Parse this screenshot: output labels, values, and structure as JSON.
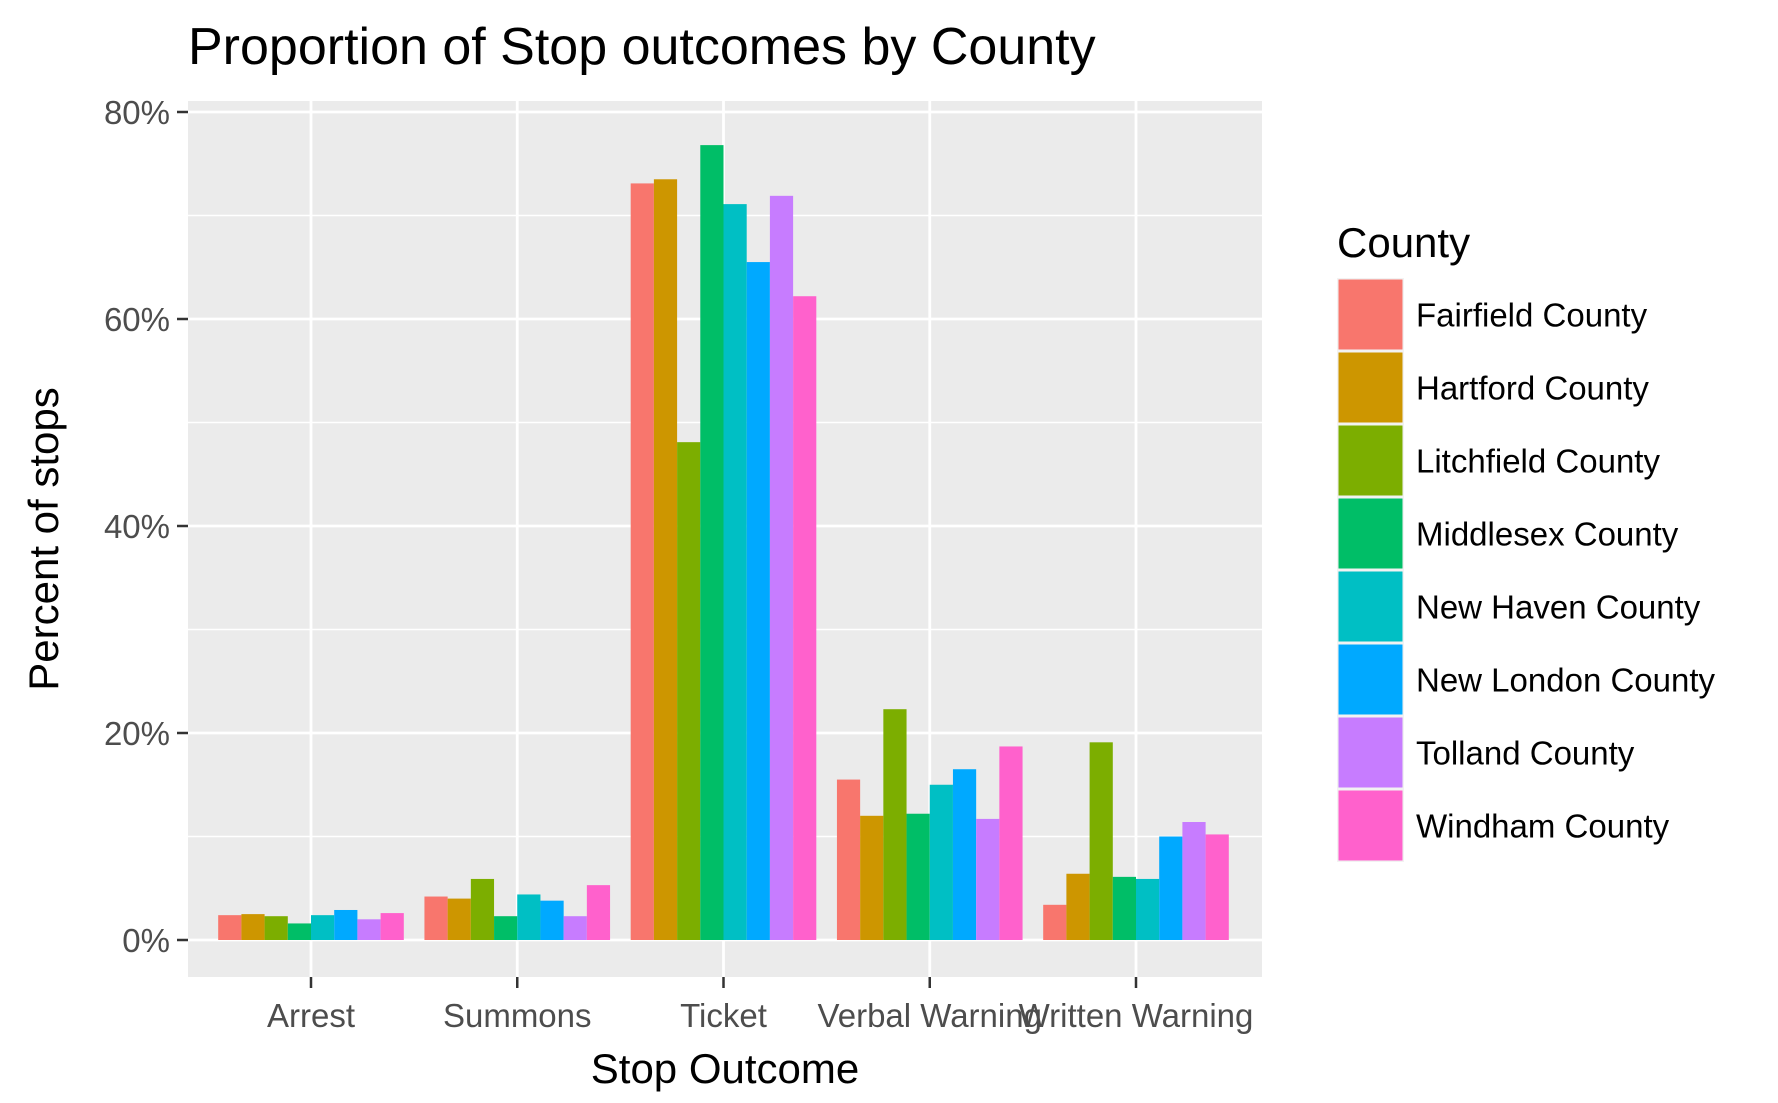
{
  "chart_data": {
    "type": "bar",
    "title": "Proportion of Stop outcomes by County",
    "xlabel": "Stop Outcome",
    "ylabel": "Percent of stops",
    "ylim": [
      0,
      0.8
    ],
    "y_ticks": [
      0,
      0.2,
      0.4,
      0.6,
      0.8
    ],
    "y_tick_labels": [
      "0%",
      "20%",
      "40%",
      "60%",
      "80%"
    ],
    "categories": [
      "Arrest",
      "Summons",
      "Ticket",
      "Verbal Warning",
      "Written Warning"
    ],
    "grid": true,
    "legend": {
      "title": "County",
      "position": "right"
    },
    "series": [
      {
        "name": "Fairfield County",
        "color": "#F8766D",
        "values": [
          0.024,
          0.042,
          0.731,
          0.155,
          0.034
        ]
      },
      {
        "name": "Hartford County",
        "color": "#CD9600",
        "values": [
          0.025,
          0.04,
          0.735,
          0.12,
          0.064
        ]
      },
      {
        "name": "Litchfield County",
        "color": "#7CAE00",
        "values": [
          0.023,
          0.059,
          0.481,
          0.223,
          0.191
        ]
      },
      {
        "name": "Middlesex County",
        "color": "#00BE67",
        "values": [
          0.016,
          0.023,
          0.768,
          0.122,
          0.061
        ]
      },
      {
        "name": "New Haven County",
        "color": "#00BFC4",
        "values": [
          0.024,
          0.044,
          0.711,
          0.15,
          0.059
        ]
      },
      {
        "name": "New London County",
        "color": "#00A9FF",
        "values": [
          0.029,
          0.038,
          0.655,
          0.165,
          0.1
        ]
      },
      {
        "name": "Tolland County",
        "color": "#C77CFF",
        "values": [
          0.02,
          0.023,
          0.719,
          0.117,
          0.114
        ]
      },
      {
        "name": "Windham County",
        "color": "#FF61CC",
        "values": [
          0.026,
          0.053,
          0.622,
          0.187,
          0.102
        ]
      }
    ]
  }
}
